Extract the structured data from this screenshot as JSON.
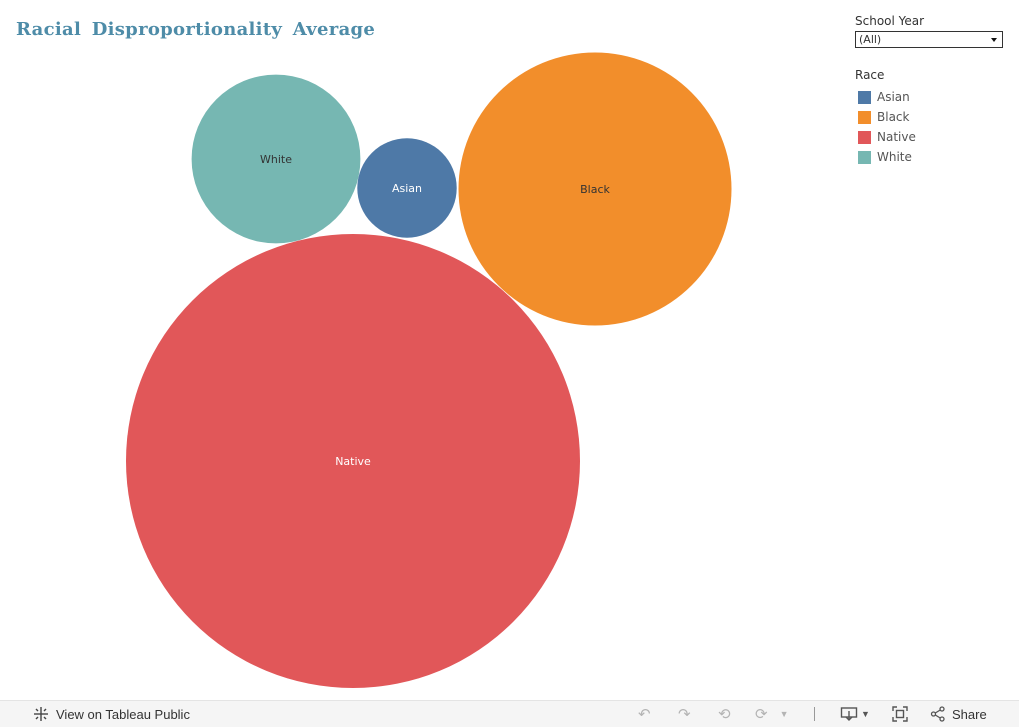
{
  "title": "Racial Disproportionality Average",
  "filter": {
    "label": "School Year",
    "selected": "(All)"
  },
  "legend": {
    "title": "Race",
    "items": [
      {
        "label": "Asian",
        "color": "#4e79a7"
      },
      {
        "label": "Black",
        "color": "#f28e2b"
      },
      {
        "label": "Native",
        "color": "#e15759"
      },
      {
        "label": "White",
        "color": "#76b7b2"
      }
    ]
  },
  "chart_data": {
    "type": "packed-bubble",
    "title": "Racial Disproportionality Average",
    "size_measure": "Racial Disproportionality Average",
    "series": [
      {
        "name": "White",
        "value": 2.6,
        "color": "#76b7b2",
        "label_color": "#333333"
      },
      {
        "name": "Asian",
        "value": 0.9,
        "color": "#4e79a7",
        "label_color": "#ffffff"
      },
      {
        "name": "Black",
        "value": 6.8,
        "color": "#f28e2b",
        "label_color": "#333333"
      },
      {
        "name": "Native",
        "value": 18.8,
        "color": "#e15759",
        "label_color": "#ffffff"
      }
    ]
  },
  "toolbar": {
    "view_label": "View on Tableau Public",
    "share_label": "Share",
    "icons": {
      "tableau": "tableau-logo-icon",
      "undo": "undo-icon",
      "redo": "redo-icon",
      "revert": "revert-icon",
      "refresh": "refresh-icon",
      "download": "download-icon",
      "fullscreen": "fullscreen-icon",
      "share": "share-icon"
    }
  }
}
